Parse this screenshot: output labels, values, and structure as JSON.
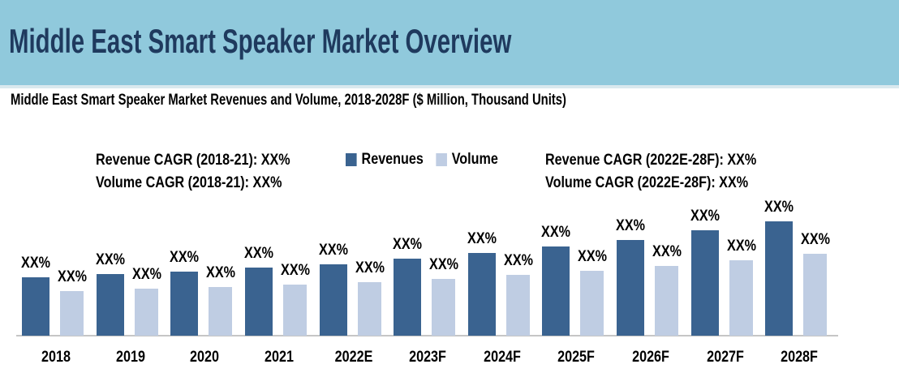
{
  "header": {
    "title": "Middle East Smart Speaker Market Overview"
  },
  "subtitle": "Middle East Smart Speaker Market Revenues and Volume, 2018-2028F ($ Million, Thousand Units)",
  "annotations": {
    "left_line1": "Revenue CAGR (2018-21): XX%",
    "left_line2": "Volume CAGR (2018-21): XX%",
    "right_line1": "Revenue CAGR (2022E-28F): XX%",
    "right_line2": "Volume CAGR (2022E-28F): XX%"
  },
  "legend": {
    "items": [
      {
        "label": "Revenues",
        "color": "#3A6390"
      },
      {
        "label": "Volume",
        "color": "#BFCDE3"
      }
    ]
  },
  "theme": {
    "header_background": "#90C9DC",
    "title_color": "#1F3A5E",
    "revenues_color": "#3A6390",
    "volume_color": "#BFCDE3",
    "axis_line_color": "#C6C6C6",
    "text_color": "#000000"
  },
  "chart_data": {
    "type": "bar",
    "title": "Middle East Smart Speaker Market Revenues and Volume, 2018-2028F",
    "units": "$ Million, Thousand Units",
    "categories": [
      "2018",
      "2019",
      "2020",
      "2021",
      "2022E",
      "2023F",
      "2024F",
      "2025F",
      "2026F",
      "2027F",
      "2028F"
    ],
    "series": [
      {
        "name": "Revenues",
        "values": [
          72,
          76,
          79,
          84,
          88,
          95,
          102,
          110,
          118,
          130,
          141
        ]
      },
      {
        "name": "Volume",
        "values": [
          55,
          58,
          60,
          63,
          66,
          70,
          75,
          80,
          86,
          93,
          101
        ]
      }
    ],
    "data_label": "XX%",
    "legend_position": "top-center",
    "note": "All data labels are masked as XX% in the source image; series values are relative bar heights in pixels."
  }
}
